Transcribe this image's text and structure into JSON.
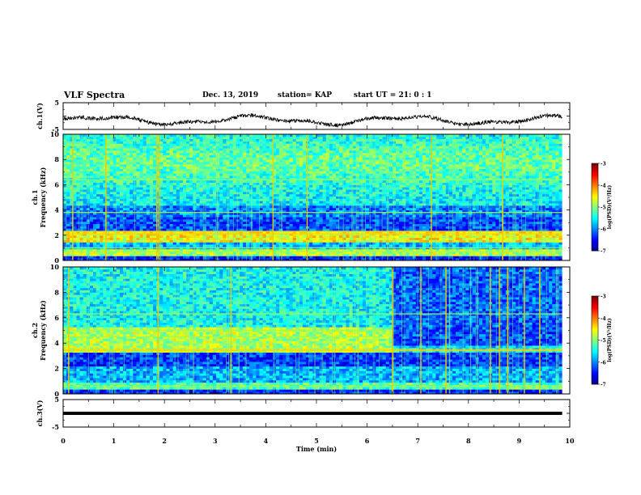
{
  "header": {
    "title": "VLF Spectra",
    "date": "Dec. 13, 2019",
    "station": "station= KAP",
    "start_ut": "start  UT =   21: 0  : 1"
  },
  "chart_data": [
    {
      "type": "line",
      "ylabel": "ch.1(V)",
      "ylim": [
        -5,
        5
      ],
      "yticks": [
        -5,
        0,
        5
      ],
      "ytick_labels": [
        "-5",
        "",
        "5"
      ],
      "xlim": [
        0,
        10
      ],
      "waveform_color": "#000000",
      "waveform_level_range_V": [
        -3.5,
        0.5
      ]
    },
    {
      "type": "heatmap",
      "ylabel": "ch.1\nFrequency  (kHz)",
      "ylim": [
        0,
        10
      ],
      "yticks": [
        0,
        2,
        4,
        6,
        8,
        10
      ],
      "xlim": [
        0,
        10
      ],
      "data_end_min": 9.85,
      "colorbar": {
        "label": "log(PSD)(V²/Hz)",
        "ticks": [
          -3,
          -4,
          -5,
          -6,
          -7
        ],
        "range": [
          -7,
          -3
        ]
      },
      "bands_khz": [
        [
          0.1,
          0.9
        ],
        [
          1.4,
          2.4
        ],
        [
          2.6,
          3.5
        ],
        [
          3.5,
          4.3
        ],
        [
          4.3,
          10
        ]
      ]
    },
    {
      "type": "heatmap",
      "ylabel": "ch.2\nFrequency  (kHz)",
      "ylim": [
        0,
        10
      ],
      "yticks": [
        0,
        2,
        4,
        6,
        8,
        10
      ],
      "xlim": [
        0,
        10
      ],
      "data_end_min": 9.85,
      "colorbar": {
        "label": "log(PSD)(V²/Hz)",
        "ticks": [
          -3,
          -4,
          -5,
          -6,
          -7
        ],
        "range": [
          -7,
          -3
        ]
      },
      "bands_khz": [
        [
          0.1,
          1.0
        ],
        [
          1.0,
          2.2
        ],
        [
          2.2,
          3.2
        ],
        [
          3.2,
          3.8
        ],
        [
          3.8,
          5.2
        ],
        [
          5.2,
          10
        ]
      ]
    },
    {
      "type": "line",
      "ylabel": "ch.3(V)",
      "ylim": [
        -5,
        5
      ],
      "yticks": [
        -5,
        0,
        5
      ],
      "ytick_labels": [
        "-5",
        "",
        "5"
      ],
      "xlim": [
        0,
        10
      ],
      "xlabel": "Time  (min)",
      "xticks": [
        0,
        1,
        2,
        3,
        4,
        5,
        6,
        7,
        8,
        9,
        10
      ],
      "level_V": 0,
      "waveform_color": "#000000"
    }
  ]
}
